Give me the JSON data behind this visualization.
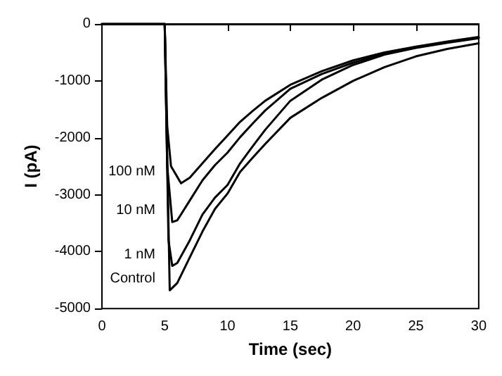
{
  "chart_data": {
    "type": "line",
    "xlabel": "Time (sec)",
    "ylabel": "I (pA)",
    "xlim": [
      0,
      30
    ],
    "ylim": [
      -5000,
      0
    ],
    "xticks": [
      0,
      5,
      10,
      15,
      20,
      25,
      30
    ],
    "yticks": [
      -5000,
      -4000,
      -3000,
      -2000,
      -1000,
      0
    ],
    "grid": false,
    "marker": "none",
    "line_style": "solid",
    "series": [
      {
        "name": "100 nM",
        "color": "#000000",
        "x": [
          0,
          4.9,
          5,
          5.2,
          5.5,
          6.3,
          7,
          8,
          9,
          10,
          11,
          12,
          13,
          15,
          17.5,
          20,
          22.5,
          25,
          27.5,
          30
        ],
        "values": [
          0,
          0,
          0,
          -1800,
          -2500,
          -2800,
          -2700,
          -2450,
          -2200,
          -1960,
          -1720,
          -1530,
          -1350,
          -1070,
          -830,
          -640,
          -500,
          -400,
          -310,
          -230
        ]
      },
      {
        "name": "10 nM",
        "color": "#000000",
        "x": [
          0,
          4.9,
          5,
          5.2,
          5.6,
          6,
          7,
          8,
          9,
          10,
          11,
          12,
          13,
          15,
          17.5,
          20,
          22.5,
          25,
          27.5,
          30
        ],
        "values": [
          0,
          0,
          0,
          -2500,
          -3480,
          -3450,
          -3100,
          -2750,
          -2480,
          -2260,
          -1990,
          -1750,
          -1520,
          -1140,
          -880,
          -680,
          -520,
          -410,
          -320,
          -240
        ]
      },
      {
        "name": "1 nM",
        "color": "#000000",
        "x": [
          0,
          4.9,
          5,
          5.3,
          5.6,
          6,
          7,
          8,
          9,
          10,
          11,
          12,
          13,
          15,
          17.5,
          20,
          22.5,
          25,
          27.5,
          30
        ],
        "values": [
          0,
          0,
          0,
          -3800,
          -4250,
          -4200,
          -3800,
          -3350,
          -3050,
          -2830,
          -2450,
          -2150,
          -1860,
          -1350,
          -980,
          -720,
          -540,
          -420,
          -330,
          -250
        ]
      },
      {
        "name": "Control",
        "color": "#000000",
        "x": [
          0,
          4.9,
          5,
          5.4,
          6,
          7,
          8,
          9,
          10,
          11,
          12,
          13,
          15,
          17.5,
          20,
          22.5,
          25,
          27.5,
          30
        ],
        "values": [
          0,
          0,
          0,
          -4680,
          -4550,
          -4100,
          -3650,
          -3250,
          -2980,
          -2600,
          -2350,
          -2110,
          -1650,
          -1300,
          -1000,
          -760,
          -570,
          -440,
          -340
        ]
      }
    ]
  }
}
